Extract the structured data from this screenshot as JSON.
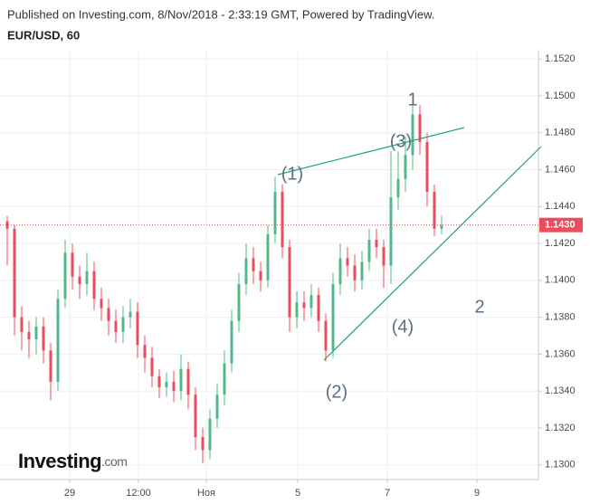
{
  "header": {
    "published": "Published on Investing.com, 8/Nov/2018 - 2:33:19 GMT, Powered by TradingView.",
    "symbol": "EUR/USD, 60"
  },
  "logo": {
    "name": "Investing",
    "suffix": ".com"
  },
  "chart_data": {
    "type": "candlestick",
    "up_color": "#53b987",
    "down_color": "#eb4d5c",
    "grid": true,
    "x": [
      4,
      8,
      12,
      16,
      20,
      24,
      28,
      32,
      36,
      40,
      44,
      48,
      52,
      56,
      60,
      64,
      68,
      72,
      76,
      80,
      84,
      88,
      92,
      96,
      100,
      104,
      108,
      112,
      116,
      120,
      124,
      128,
      132,
      136,
      140,
      144,
      148,
      152,
      156,
      160,
      164,
      168,
      172,
      176,
      180,
      184,
      188,
      192,
      196,
      200,
      204,
      208,
      212,
      216,
      220,
      224,
      228,
      232,
      236,
      240,
      244
    ],
    "open": [
      1.1432,
      1.1428,
      1.138,
      1.1372,
      1.1368,
      1.1375,
      1.1362,
      1.1345,
      1.139,
      1.1415,
      1.1402,
      1.1398,
      1.1405,
      1.139,
      1.1385,
      1.1378,
      1.1372,
      1.138,
      1.1383,
      1.1365,
      1.1358,
      1.1348,
      1.1342,
      1.1345,
      1.134,
      1.1352,
      1.1338,
      1.1315,
      1.1308,
      1.1325,
      1.1338,
      1.1355,
      1.1378,
      1.1398,
      1.1412,
      1.1405,
      1.14,
      1.1425,
      1.1448,
      1.1418,
      1.138,
      1.1388,
      1.1385,
      1.1392,
      1.1378,
      1.1362,
      1.1398,
      1.1412,
      1.1408,
      1.14,
      1.141,
      1.1422,
      1.1418,
      1.1408,
      1.1445,
      1.1455,
      1.1468,
      1.149,
      1.1475,
      1.1448,
      1.1428
    ],
    "high": [
      1.1435,
      1.143,
      1.1386,
      1.1378,
      1.138,
      1.138,
      1.1366,
      1.1395,
      1.1422,
      1.142,
      1.1408,
      1.1415,
      1.141,
      1.1396,
      1.139,
      1.1384,
      1.1386,
      1.139,
      1.1388,
      1.137,
      1.1364,
      1.1352,
      1.135,
      1.1351,
      1.136,
      1.1356,
      1.1342,
      1.132,
      1.133,
      1.1344,
      1.1362,
      1.1384,
      1.1404,
      1.142,
      1.1418,
      1.141,
      1.143,
      1.1456,
      1.1452,
      1.1422,
      1.1394,
      1.1394,
      1.1398,
      1.1396,
      1.1382,
      1.1404,
      1.142,
      1.1418,
      1.1414,
      1.1416,
      1.1428,
      1.1428,
      1.1422,
      1.147,
      1.147,
      1.1478,
      1.1497,
      1.1495,
      1.148,
      1.1452,
      1.1435
    ],
    "low": [
      1.1408,
      1.137,
      1.1362,
      1.1358,
      1.136,
      1.1355,
      1.1335,
      1.134,
      1.1385,
      1.1395,
      1.139,
      1.1392,
      1.1384,
      1.1378,
      1.137,
      1.1366,
      1.1366,
      1.1374,
      1.1358,
      1.135,
      1.1342,
      1.1336,
      1.1337,
      1.1334,
      1.1335,
      1.133,
      1.1308,
      1.1301,
      1.1303,
      1.132,
      1.1332,
      1.135,
      1.1372,
      1.1392,
      1.1398,
      1.1394,
      1.1396,
      1.142,
      1.1412,
      1.1372,
      1.1374,
      1.1378,
      1.138,
      1.1372,
      1.1356,
      1.1358,
      1.1392,
      1.1402,
      1.1394,
      1.1395,
      1.1405,
      1.1412,
      1.1396,
      1.1398,
      1.1438,
      1.1448,
      1.146,
      1.1468,
      1.144,
      1.1424,
      1.1425
    ],
    "close": [
      1.1428,
      1.138,
      1.1372,
      1.1368,
      1.1375,
      1.1362,
      1.1345,
      1.139,
      1.1415,
      1.1402,
      1.1398,
      1.1405,
      1.139,
      1.1385,
      1.1378,
      1.1372,
      1.138,
      1.1383,
      1.1365,
      1.1358,
      1.1348,
      1.1342,
      1.1345,
      1.134,
      1.1352,
      1.1338,
      1.1315,
      1.1308,
      1.1325,
      1.1338,
      1.1355,
      1.1378,
      1.1398,
      1.1412,
      1.1405,
      1.14,
      1.1425,
      1.1448,
      1.1418,
      1.138,
      1.1388,
      1.1385,
      1.1392,
      1.1378,
      1.1362,
      1.1398,
      1.1412,
      1.1408,
      1.14,
      1.141,
      1.1422,
      1.1418,
      1.1408,
      1.1445,
      1.1455,
      1.1468,
      1.149,
      1.1475,
      1.1448,
      1.1428,
      1.143
    ],
    "xlim": [
      0,
      297
    ],
    "xticks": [
      {
        "value": 38.5,
        "label": "29"
      },
      {
        "value": 76.5,
        "label": "12:00"
      },
      {
        "value": 114,
        "label": "Ноя"
      },
      {
        "value": 164.5,
        "label": "5"
      },
      {
        "value": 214,
        "label": "7"
      },
      {
        "value": 263.5,
        "label": "9"
      }
    ],
    "ylim": [
      1.1292,
      1.1525
    ],
    "yticks": [
      {
        "value": 1.13,
        "label": "1.1300"
      },
      {
        "value": 1.132,
        "label": "1.1320"
      },
      {
        "value": 1.134,
        "label": "1.1340"
      },
      {
        "value": 1.136,
        "label": "1.1360"
      },
      {
        "value": 1.138,
        "label": "1.1380"
      },
      {
        "value": 1.14,
        "label": "1.1400"
      },
      {
        "value": 1.142,
        "label": "1.1420"
      },
      {
        "value": 1.144,
        "label": "1.1440"
      },
      {
        "value": 1.146,
        "label": "1.1460"
      },
      {
        "value": 1.148,
        "label": "1.1480"
      },
      {
        "value": 1.15,
        "label": "1.1500"
      },
      {
        "value": 1.152,
        "label": "1.1520"
      }
    ],
    "last_price": {
      "value": 1.143,
      "label": "1.1430"
    },
    "annotations": [
      "(1)",
      "(3)",
      "1",
      "(4)",
      "(2)",
      "2"
    ]
  }
}
